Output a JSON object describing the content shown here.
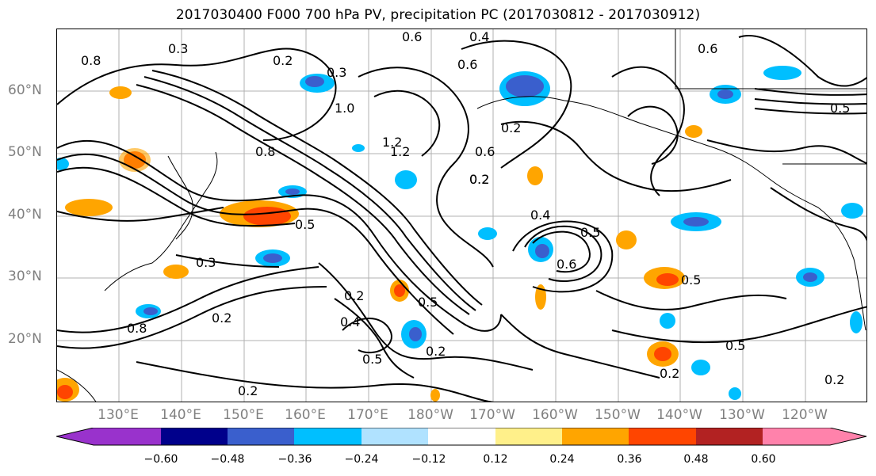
{
  "title": "2017030400 F000 700 hPa PV, precipitation PC (2017030812 - 2017030912)",
  "lat_labels": [
    "60°N",
    "50°N",
    "40°N",
    "30°N",
    "20°N"
  ],
  "lon_labels": [
    "130°E",
    "140°E",
    "150°E",
    "160°E",
    "170°E",
    "180°W",
    "170°W",
    "160°W",
    "150°W",
    "140°W",
    "130°W",
    "120°W"
  ],
  "colorbar": {
    "ticks": [
      "−0.60",
      "−0.48",
      "−0.36",
      "−0.24",
      "−0.12",
      "0.12",
      "0.24",
      "0.36",
      "0.48",
      "0.60"
    ],
    "colors": [
      "#9932cc",
      "#00008b",
      "#3a5fcd",
      "#00bfff",
      "#b0e2ff",
      "#ffffff",
      "#fff08a",
      "#ffa500",
      "#ff4500",
      "#b22222",
      "#ff82ab"
    ]
  },
  "contour_labels": [
    "0.2",
    "0.3",
    "0.4",
    "0.5",
    "0.6",
    "0.8",
    "1.0",
    "1.2",
    "0.2",
    "0.5",
    "0.6",
    "0.2",
    "0.3",
    "0.5",
    "0.2",
    "0.4",
    "0.5",
    "0.6",
    "0.2",
    "0.5",
    "0.2",
    "0.8",
    "0.6",
    "0.2",
    "0.5",
    "0.2",
    "0.3",
    "0.5",
    "0.2",
    "0.6",
    "0.4",
    "0.8",
    "1.2",
    "0.2"
  ]
}
